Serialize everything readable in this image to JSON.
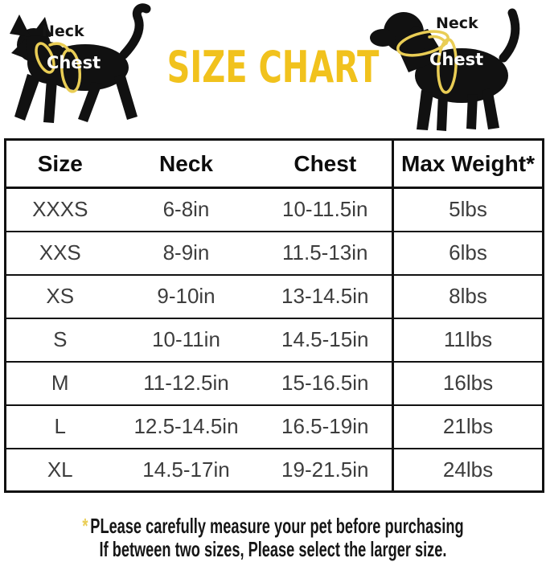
{
  "header": {
    "title": "SIZE CHART",
    "cat": {
      "neck_label": "Neck",
      "chest_label": "Chest"
    },
    "dog": {
      "neck_label": "Neck",
      "chest_label": "Chest"
    }
  },
  "chart_data": {
    "type": "table",
    "title": "SIZE CHART",
    "columns": [
      "Size",
      "Neck",
      "Chest",
      "Max Weight*"
    ],
    "rows": [
      [
        "XXXS",
        "6-8in",
        "10-11.5in",
        "5lbs"
      ],
      [
        "XXS",
        "8-9in",
        "11.5-13in",
        "6lbs"
      ],
      [
        "XS",
        "9-10in",
        "13-14.5in",
        "8lbs"
      ],
      [
        "S",
        "10-11in",
        "14.5-15in",
        "11lbs"
      ],
      [
        "M",
        "11-12.5in",
        "15-16.5in",
        "16lbs"
      ],
      [
        "L",
        "12.5-14.5in",
        "16.5-19in",
        "21lbs"
      ],
      [
        "XL",
        "14.5-17in",
        "19-21.5in",
        "24lbs"
      ]
    ]
  },
  "footer": {
    "asterisk": "*",
    "line1": "PLease carefully measure your pet before purchasing",
    "line2": "If between two sizes, Please select the larger size."
  },
  "colors": {
    "title_yellow": "#f1c21d",
    "harness_yellow": "#e9cd55",
    "border_black": "#111111",
    "cell_text": "#3d3d3d",
    "chest_label_white": "#ffffff",
    "background": "#ffffff"
  }
}
